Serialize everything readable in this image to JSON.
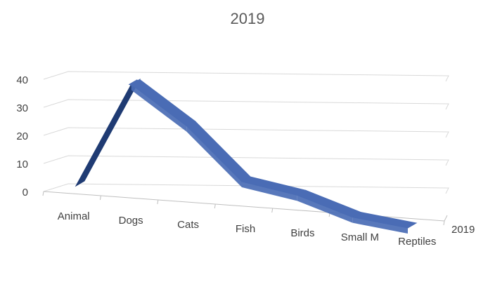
{
  "chart_data": {
    "type": "line",
    "title": "2019",
    "categories": [
      "Animal",
      "Dogs",
      "Cats",
      "Fish",
      "Birds",
      "Small M",
      "Reptiles"
    ],
    "series": [
      {
        "name": "2019",
        "values": [
          0,
          38,
          25,
          7,
          4,
          -2,
          -4
        ]
      }
    ],
    "y_ticks": [
      0,
      10,
      20,
      30,
      40
    ],
    "ylim": [
      0,
      40
    ],
    "grid": true,
    "style": "3d-line",
    "colors": {
      "front": "#4a6cb5",
      "side": "#1f3b73",
      "gridline": "#d9d9d9",
      "text": "#404040",
      "title": "#595959"
    }
  }
}
